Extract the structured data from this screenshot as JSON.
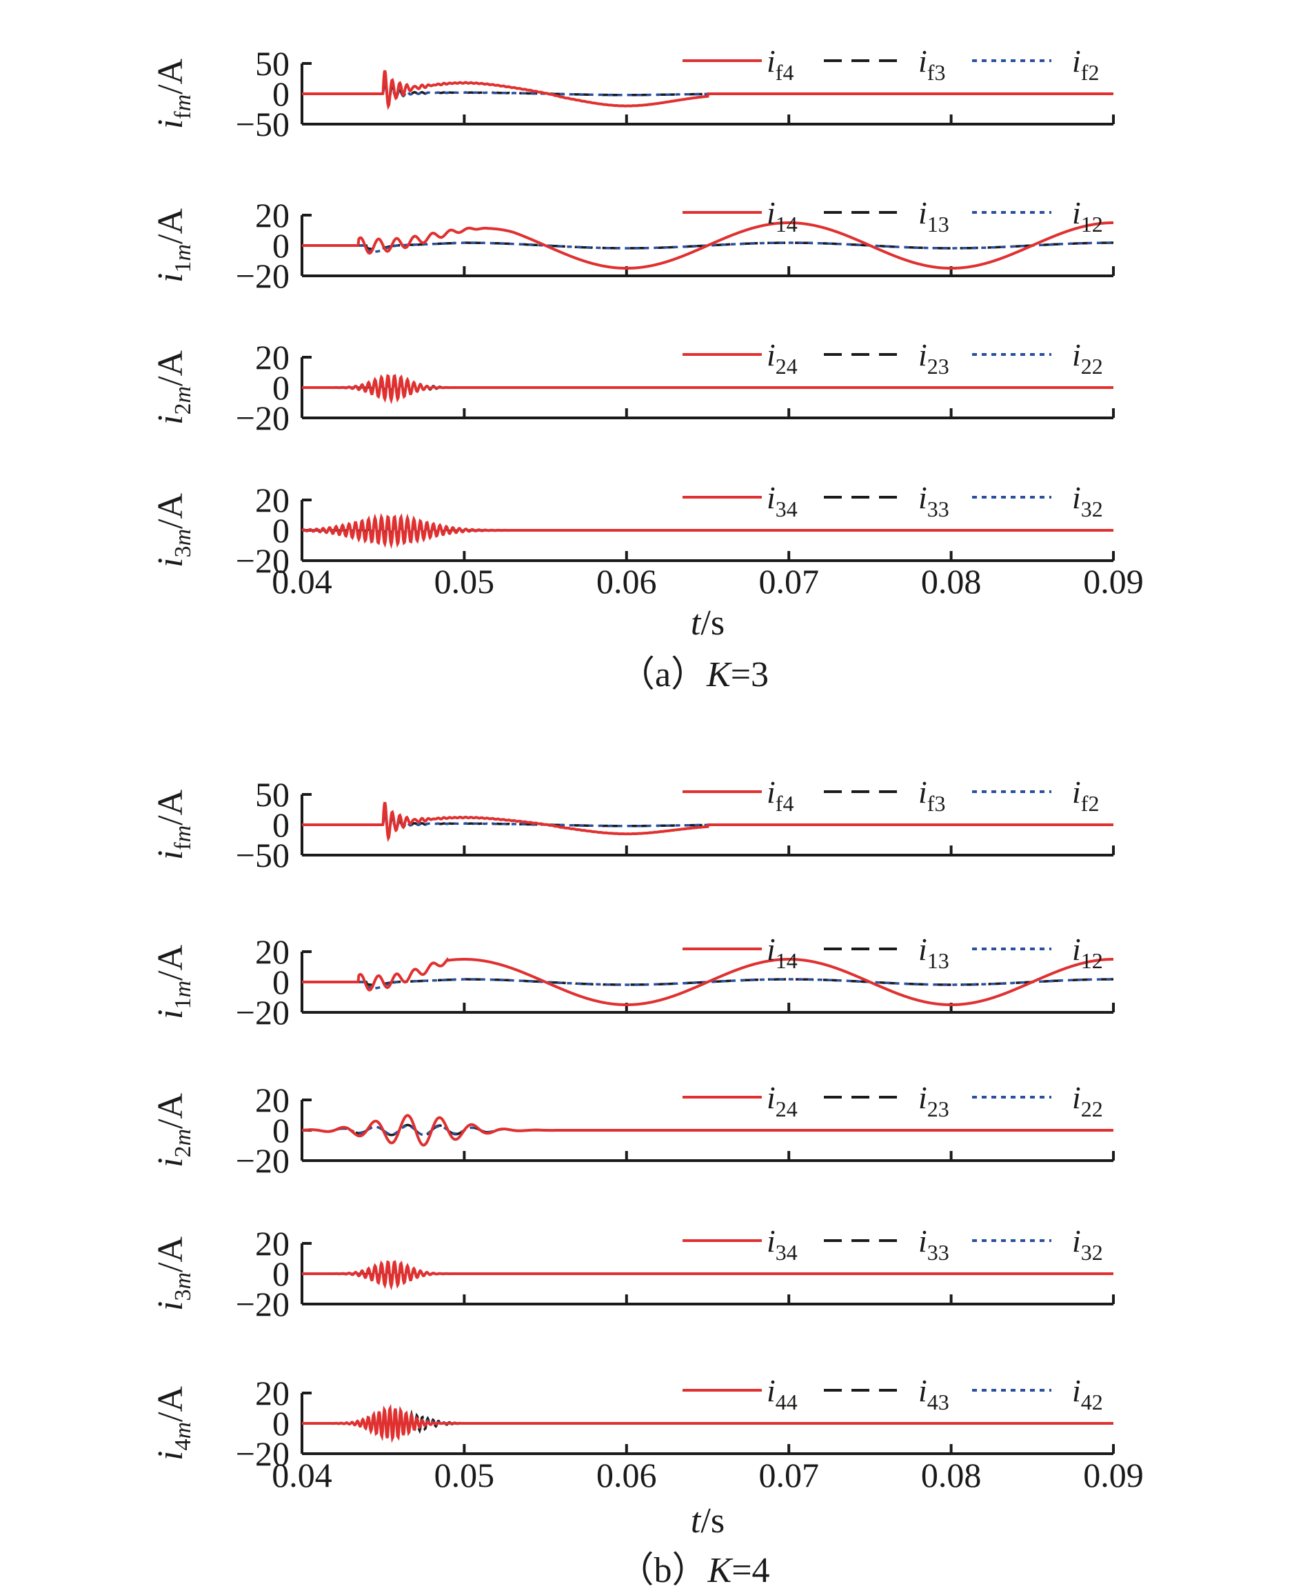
{
  "figure": {
    "panels": [
      {
        "caption": "（a）K=3",
        "xlabel": "t/s",
        "xticks": [
          "0.04",
          "0.05",
          "0.06",
          "0.07",
          "0.08",
          "0.09"
        ]
      },
      {
        "caption": "（b）K=4",
        "xlabel": "t/s",
        "xticks": [
          "0.04",
          "0.05",
          "0.06",
          "0.07",
          "0.08",
          "0.09"
        ]
      }
    ]
  },
  "colors": {
    "red": "#e03030",
    "black": "#1a1a1a",
    "blue": "#2a4f9e"
  },
  "chart_data": [
    {
      "type": "line",
      "panel": "a",
      "caption": "（a）K=3",
      "xlabel": "t/s",
      "xlim": [
        0.04,
        0.09
      ],
      "xticks": [
        0.04,
        0.05,
        0.06,
        0.07,
        0.08,
        0.09
      ],
      "subplots": [
        {
          "ylabel": "i_fm/A",
          "ylim": [
            -50,
            50
          ],
          "yticks": [
            50,
            0,
            -50
          ],
          "series": [
            {
              "name": "i_f4",
              "style": "solid",
              "color": "red",
              "model": "fault",
              "params": {
                "amp": 38,
                "spike": 38,
                "hump": 18,
                "sineAmp": 20,
                "endAt": 0.065
              }
            },
            {
              "name": "i_f3",
              "style": "dashed",
              "color": "black",
              "model": "fault",
              "params": {
                "amp": 16,
                "spike": 20,
                "hump": 2,
                "sineAmp": 2,
                "endAt": 0.09
              }
            },
            {
              "name": "i_f2",
              "style": "dotted",
              "color": "blue",
              "model": "fault",
              "params": {
                "amp": 14,
                "spike": 18,
                "hump": 2,
                "sineAmp": 2,
                "endAt": 0.09
              }
            }
          ]
        },
        {
          "ylabel": "i_1m/A",
          "ylim": [
            -20,
            20
          ],
          "yticks": [
            20,
            0,
            -20
          ],
          "series": [
            {
              "name": "i_14",
              "style": "solid",
              "color": "red",
              "model": "sine",
              "params": {
                "amp": 15,
                "start": 0.0435,
                "humpEnd": 0.053,
                "bumps": 3
              }
            },
            {
              "name": "i_13",
              "style": "dashed",
              "color": "black",
              "model": "sine",
              "params": {
                "amp": 1.8,
                "start": 0.044,
                "dip": -2.5
              }
            },
            {
              "name": "i_12",
              "style": "dotted",
              "color": "blue",
              "model": "sine",
              "params": {
                "amp": 1.8,
                "start": 0.044,
                "dip": -4
              }
            }
          ]
        },
        {
          "ylabel": "i_2m/A",
          "ylim": [
            -20,
            20
          ],
          "yticks": [
            20,
            0,
            -20
          ],
          "series": [
            {
              "name": "i_24",
              "style": "solid",
              "color": "red",
              "model": "burst",
              "params": {
                "amp": 8,
                "center": 0.0455,
                "width": 0.0015,
                "freq": 2500
              }
            },
            {
              "name": "i_23",
              "style": "dashed",
              "color": "black",
              "model": "burst",
              "params": {
                "amp": 3,
                "center": 0.0465,
                "width": 0.0015,
                "freq": 2500
              }
            },
            {
              "name": "i_22",
              "style": "dotted",
              "color": "blue",
              "model": "burst",
              "params": {
                "amp": 2,
                "center": 0.0465,
                "width": 0.0015,
                "freq": 2500
              }
            }
          ]
        },
        {
          "ylabel": "i_3m/A",
          "ylim": [
            -20,
            20
          ],
          "yticks": [
            20,
            0,
            -20
          ],
          "series": [
            {
              "name": "i_34",
              "style": "solid",
              "color": "red",
              "model": "burst",
              "params": {
                "amp": 9,
                "center": 0.0455,
                "width": 0.003,
                "freq": 2500
              }
            },
            {
              "name": "i_33",
              "style": "dashed",
              "color": "black",
              "model": "burst",
              "params": {
                "amp": 2,
                "center": 0.0465,
                "width": 0.002,
                "freq": 2500
              }
            },
            {
              "name": "i_32",
              "style": "dotted",
              "color": "blue",
              "model": "burst",
              "params": {
                "amp": 1.5,
                "center": 0.0465,
                "width": 0.002,
                "freq": 2500
              }
            }
          ]
        }
      ],
      "legend_labels": [
        [
          "i_f4",
          "i_f3",
          "i_f2"
        ],
        [
          "i_14",
          "i_13",
          "i_12"
        ],
        [
          "i_24",
          "i_23",
          "i_22"
        ],
        [
          "i_34",
          "i_33",
          "i_32"
        ]
      ]
    },
    {
      "type": "line",
      "panel": "b",
      "caption": "（b）K=4",
      "xlabel": "t/s",
      "xlim": [
        0.04,
        0.09
      ],
      "xticks": [
        0.04,
        0.05,
        0.06,
        0.07,
        0.08,
        0.09
      ],
      "subplots": [
        {
          "ylabel": "i_fm/A",
          "ylim": [
            -50,
            50
          ],
          "yticks": [
            50,
            0,
            -50
          ],
          "series": [
            {
              "name": "i_f4",
              "style": "solid",
              "color": "red",
              "model": "fault",
              "params": {
                "amp": 38,
                "spike": 38,
                "hump": 12,
                "sineAmp": 15,
                "endAt": 0.065
              }
            },
            {
              "name": "i_f3",
              "style": "dashed",
              "color": "black",
              "model": "fault",
              "params": {
                "amp": 16,
                "spike": 20,
                "hump": 2,
                "sineAmp": 2,
                "endAt": 0.09
              }
            },
            {
              "name": "i_f2",
              "style": "dotted",
              "color": "blue",
              "model": "fault",
              "params": {
                "amp": 14,
                "spike": 18,
                "hump": 2,
                "sineAmp": 2,
                "endAt": 0.09
              }
            }
          ]
        },
        {
          "ylabel": "i_1m/A",
          "ylim": [
            -20,
            20
          ],
          "yticks": [
            20,
            0,
            -20
          ],
          "series": [
            {
              "name": "i_14",
              "style": "solid",
              "color": "red",
              "model": "sine",
              "params": {
                "amp": 15,
                "start": 0.0435,
                "humpEnd": 0.049,
                "bumps": 1
              }
            },
            {
              "name": "i_13",
              "style": "dashed",
              "color": "black",
              "model": "sine",
              "params": {
                "amp": 1.8,
                "start": 0.044,
                "dip": -2
              }
            },
            {
              "name": "i_12",
              "style": "dotted",
              "color": "blue",
              "model": "sine",
              "params": {
                "amp": 1.8,
                "start": 0.044,
                "dip": -4
              }
            }
          ]
        },
        {
          "ylabel": "i_2m/A",
          "ylim": [
            -20,
            20
          ],
          "yticks": [
            20,
            0,
            -20
          ],
          "series": [
            {
              "name": "i_24",
              "style": "solid",
              "color": "red",
              "model": "burst",
              "params": {
                "amp": 10,
                "center": 0.047,
                "width": 0.0035,
                "freq": 500
              }
            },
            {
              "name": "i_23",
              "style": "dashed",
              "color": "black",
              "model": "burst",
              "params": {
                "amp": 3.5,
                "center": 0.047,
                "width": 0.0045,
                "freq": 500
              }
            },
            {
              "name": "i_22",
              "style": "dotted",
              "color": "blue",
              "model": "burst",
              "params": {
                "amp": 3,
                "center": 0.047,
                "width": 0.0045,
                "freq": 500
              }
            }
          ]
        },
        {
          "ylabel": "i_3m/A",
          "ylim": [
            -20,
            20
          ],
          "yticks": [
            20,
            0,
            -20
          ],
          "series": [
            {
              "name": "i_34",
              "style": "solid",
              "color": "red",
              "model": "burst",
              "params": {
                "amp": 8,
                "center": 0.0455,
                "width": 0.0015,
                "freq": 2500
              }
            },
            {
              "name": "i_33",
              "style": "dashed",
              "color": "black",
              "model": "burst",
              "params": {
                "amp": 2,
                "center": 0.046,
                "width": 0.0015,
                "freq": 2500
              }
            },
            {
              "name": "i_32",
              "style": "dotted",
              "color": "blue",
              "model": "burst",
              "params": {
                "amp": 1.5,
                "center": 0.046,
                "width": 0.0015,
                "freq": 2500
              }
            }
          ]
        },
        {
          "ylabel": "i_4m/A",
          "ylim": [
            -20,
            20
          ],
          "yticks": [
            20,
            0,
            -20
          ],
          "series": [
            {
              "name": "i_44",
              "style": "solid",
              "color": "red",
              "model": "burst",
              "params": {
                "amp": 10,
                "center": 0.0455,
                "width": 0.0015,
                "freq": 3000
              }
            },
            {
              "name": "i_43",
              "style": "dashed",
              "color": "black",
              "model": "burst",
              "params": {
                "amp": 7,
                "center": 0.046,
                "width": 0.002,
                "freq": 3000
              }
            },
            {
              "name": "i_42",
              "style": "dotted",
              "color": "blue",
              "model": "burst",
              "params": {
                "amp": 4,
                "center": 0.046,
                "width": 0.002,
                "freq": 3000
              }
            }
          ]
        }
      ],
      "legend_labels": [
        [
          "i_f4",
          "i_f3",
          "i_f2"
        ],
        [
          "i_14",
          "i_13",
          "i_12"
        ],
        [
          "i_24",
          "i_23",
          "i_22"
        ],
        [
          "i_34",
          "i_33",
          "i_32"
        ],
        [
          "i_44",
          "i_43",
          "i_42"
        ]
      ]
    }
  ]
}
